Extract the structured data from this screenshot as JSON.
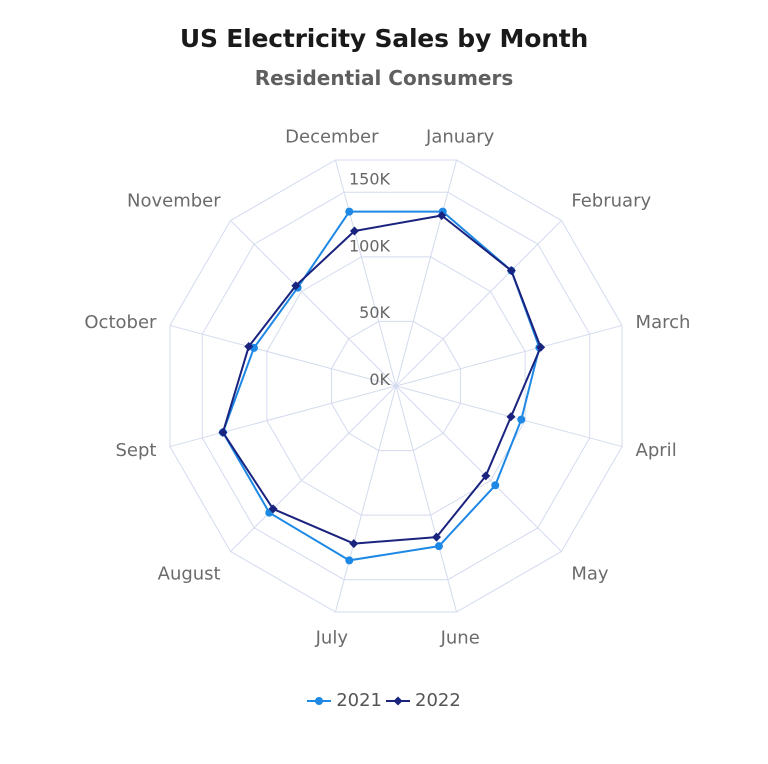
{
  "chart_data": {
    "type": "radar",
    "title": "US Electricity Sales by Month",
    "subtitle": "Residential Consumers",
    "categories": [
      "January",
      "February",
      "March",
      "April",
      "May",
      "June",
      "July",
      "August",
      "Sept",
      "October",
      "November",
      "December"
    ],
    "radial_ticks": [
      {
        "value": 0,
        "label": "0K"
      },
      {
        "value": 50,
        "label": "50K"
      },
      {
        "value": 100,
        "label": "100K"
      },
      {
        "value": 150,
        "label": "150K"
      }
    ],
    "rmax": 175,
    "grid": true,
    "legend_position": "bottom",
    "series": [
      {
        "name": "2021",
        "color": "#1e88e5",
        "marker": "circle",
        "values": [
          135,
          122,
          111,
          97,
          105,
          124,
          135,
          134,
          134,
          110,
          104,
          135
        ]
      },
      {
        "name": "2022",
        "color": "#1a237e",
        "marker": "diamond",
        "values": [
          132,
          122,
          112,
          89,
          95,
          117,
          122,
          130,
          134,
          114,
          106,
          120
        ]
      }
    ]
  }
}
